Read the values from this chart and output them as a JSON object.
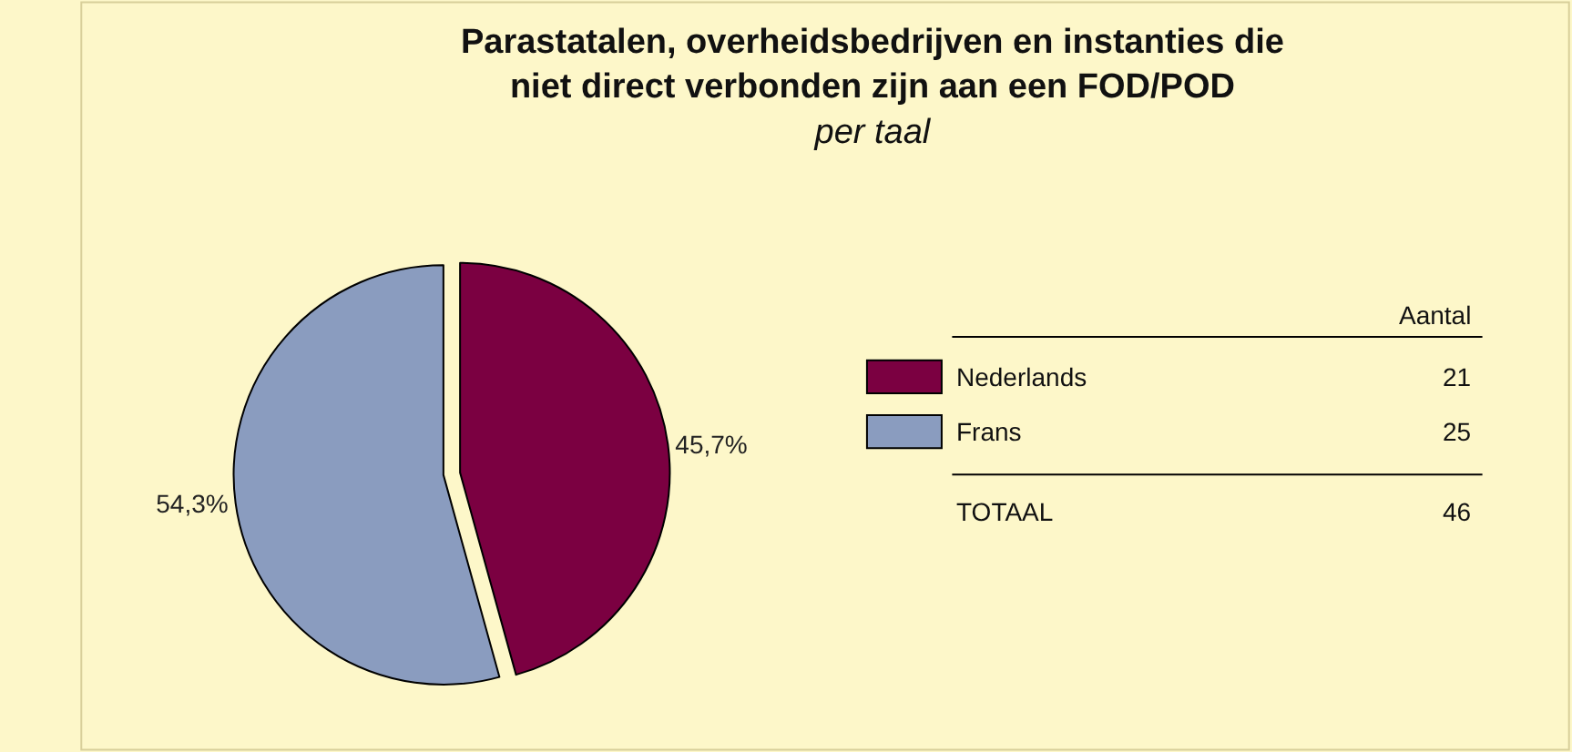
{
  "chart_data": {
    "type": "pie",
    "title": "Parastatalen, overheidsbedrijven en instanties die\nniet direct verbonden zijn aan een FOD/POD",
    "subtitle": "per taal",
    "categories": [
      "Nederlands",
      "Frans"
    ],
    "values": [
      45.7,
      54.3
    ],
    "colors": [
      "#7b0041",
      "#8a9cbf"
    ],
    "value_labels": [
      "45,7%",
      "54,3%"
    ],
    "legend": "right",
    "annotations": [
      "Aantal",
      "21",
      "25",
      "TOTAAL",
      "46"
    ]
  }
}
